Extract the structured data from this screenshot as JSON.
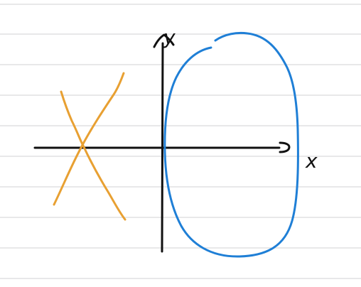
{
  "colors": {
    "paper": "#ffffff",
    "rule_lines": "#d9d9dc",
    "axes_ink": "#111111",
    "curve_blue": "#1f7fd6",
    "curve_orange": "#e8a032"
  },
  "axes": {
    "x_label": "x",
    "y_label": "y"
  }
}
